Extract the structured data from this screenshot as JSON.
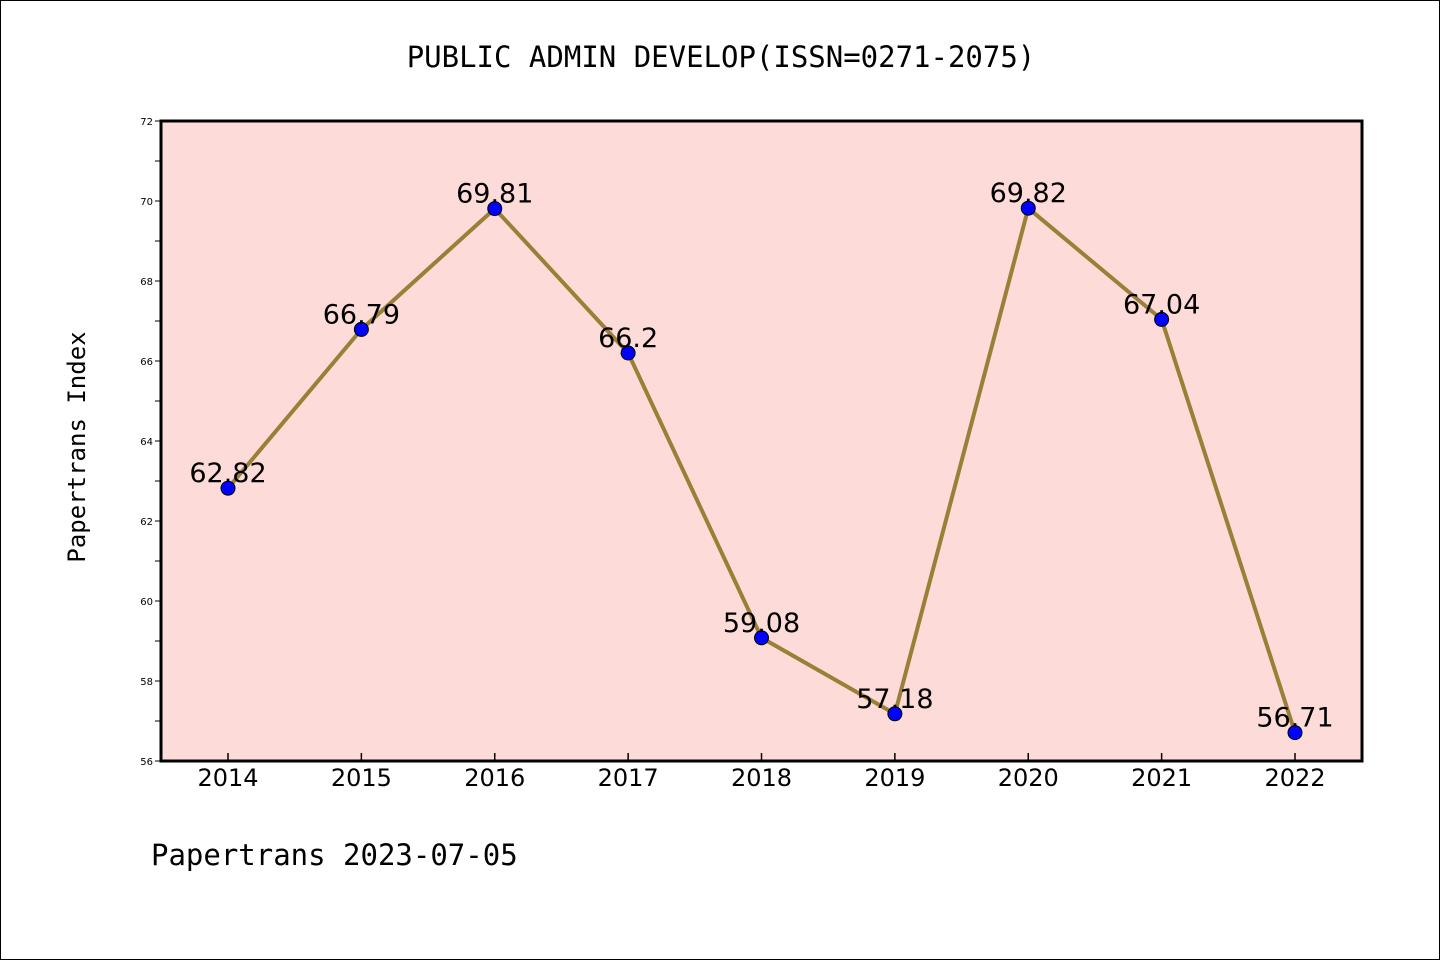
{
  "chart_data": {
    "type": "line",
    "title": "PUBLIC ADMIN DEVELOP(ISSN=0271-2075)",
    "xlabel": "",
    "ylabel": "Papertrans Index",
    "categories": [
      "2014",
      "2015",
      "2016",
      "2017",
      "2018",
      "2019",
      "2020",
      "2021",
      "2022"
    ],
    "values": [
      62.82,
      66.79,
      69.81,
      66.2,
      59.08,
      57.18,
      69.82,
      67.04,
      56.71
    ],
    "data_labels": [
      "62.82",
      "66.79",
      "69.81",
      "66.2",
      "59.08",
      "57.18",
      "69.82",
      "67.04",
      "56.71"
    ],
    "ylim": [
      56,
      72
    ],
    "yticks": [
      56,
      58,
      60,
      62,
      64,
      66,
      68,
      70,
      72
    ],
    "grid": false,
    "legend": "none",
    "colors": {
      "plot_background": "#fddbd9",
      "line": "#9a8036",
      "marker": "#0000ff"
    }
  },
  "footer": {
    "text": "Papertrans 2023-07-05"
  }
}
